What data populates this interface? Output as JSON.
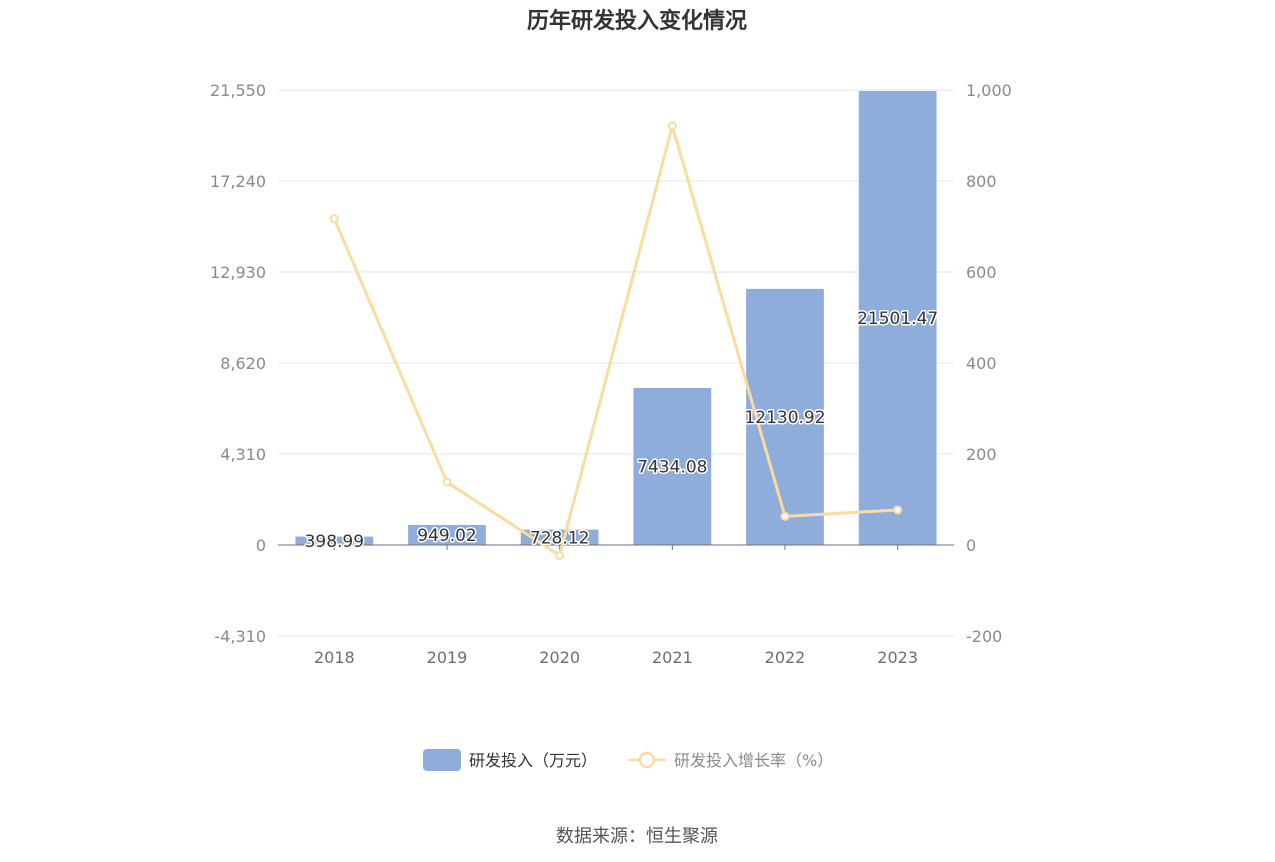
{
  "chart_data": {
    "type": "bar",
    "title": "历年研发投入变化情况",
    "categories": [
      "2018",
      "2019",
      "2020",
      "2021",
      "2022",
      "2023"
    ],
    "series": [
      {
        "name": "研发投入（万元）",
        "type": "bar",
        "axis": "left",
        "values": [
          398.99,
          949.02,
          728.12,
          7434.08,
          12130.92,
          21501.47
        ],
        "labels": [
          "398.99",
          "949.02",
          "728.12",
          "7434.08",
          "12130.92",
          "21501.47"
        ],
        "color": "#8eadda"
      },
      {
        "name": "研发投入增长率（%）",
        "type": "line",
        "axis": "right",
        "values": [
          717,
          138,
          -23,
          921,
          63,
          77
        ],
        "color": "#fbdc9f"
      }
    ],
    "y_left": {
      "ylim": [
        -4310,
        21550
      ],
      "ticks": [
        21550,
        17240,
        12930,
        8620,
        4310,
        0,
        -4310
      ],
      "tick_labels": [
        "21,550",
        "17,240",
        "12,930",
        "8,620",
        "4,310",
        "0",
        "-4,310"
      ]
    },
    "y_right": {
      "ylim": [
        -200,
        1000
      ],
      "ticks": [
        1000,
        800,
        600,
        400,
        200,
        0,
        -200
      ],
      "tick_labels": [
        "1,000",
        "800",
        "600",
        "400",
        "200",
        "0",
        "-200"
      ]
    },
    "grid": true,
    "legend_position": "bottom-center"
  },
  "source_text": "数据来源：恒生聚源"
}
